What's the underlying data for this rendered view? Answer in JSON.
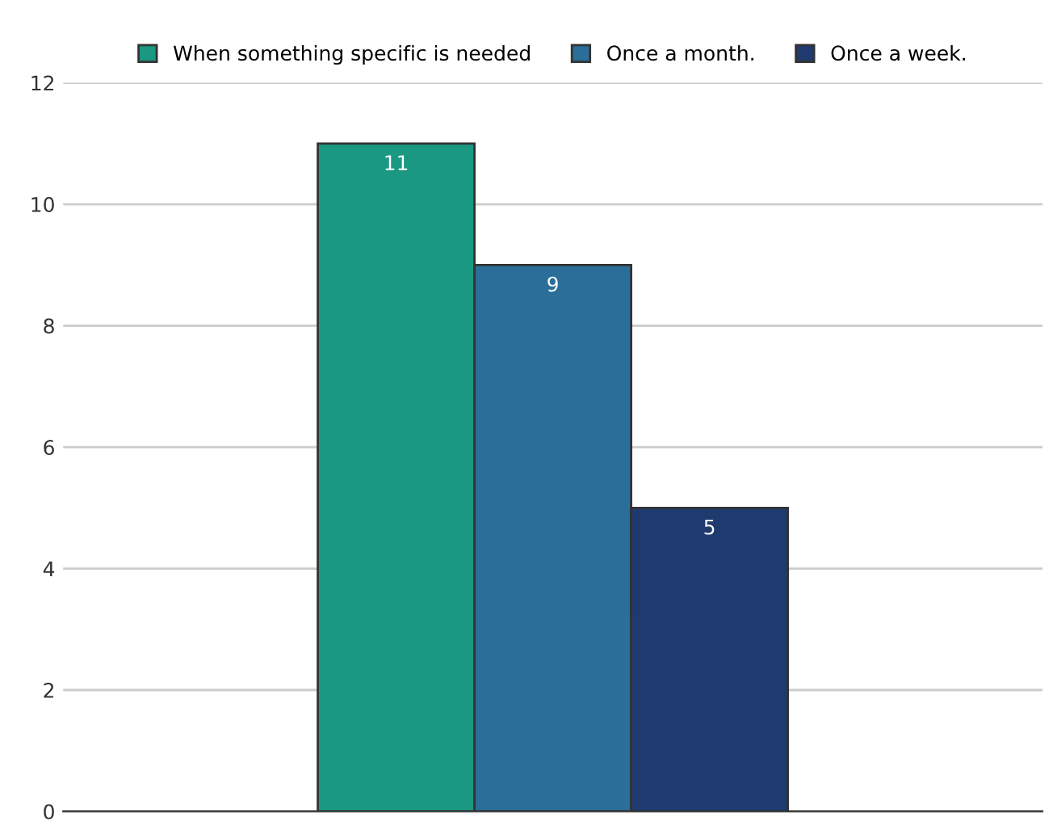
{
  "chart_data": {
    "type": "bar",
    "categories": [
      null
    ],
    "series": [
      {
        "name": "When something specific is needed",
        "color": "#1a9882",
        "values": [
          11
        ]
      },
      {
        "name": "Once a month.",
        "color": "#2a6e99",
        "values": [
          9
        ]
      },
      {
        "name": "Once a week.",
        "color": "#1f3a6e",
        "values": [
          5
        ]
      }
    ],
    "ylim": [
      0,
      12
    ],
    "yticks": [
      0,
      2,
      4,
      6,
      8,
      10,
      12
    ],
    "grid": "y",
    "legend": "top",
    "data_labels": true
  }
}
